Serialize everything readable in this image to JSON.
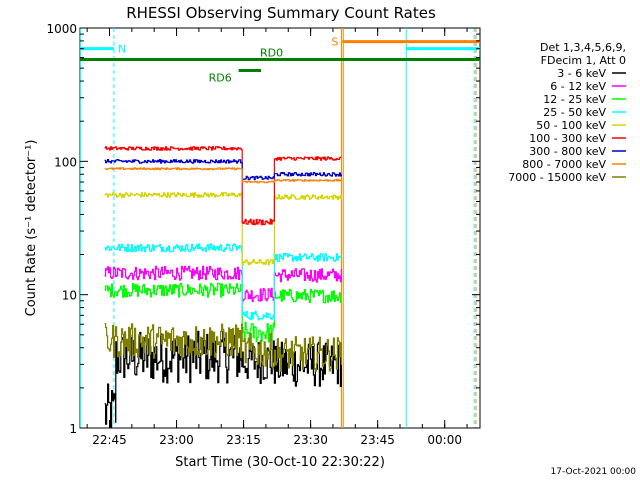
{
  "chart_data": {
    "type": "line",
    "title": "RHESSI Observing Summary Count Rates",
    "xlabel": "Start Time (30-Oct-10 22:30:22)",
    "ylabel": "Count Rate (s⁻¹ detector⁻¹)",
    "x_unit": "minutes from 22:30:22",
    "xlim": [
      8.0,
      97.5
    ],
    "ylim": [
      1,
      1000
    ],
    "yscale": "log",
    "x_ticks": [
      {
        "x": 14.6,
        "label": "22:45"
      },
      {
        "x": 29.6,
        "label": "23:00"
      },
      {
        "x": 44.6,
        "label": "23:15"
      },
      {
        "x": 59.6,
        "label": "23:30"
      },
      {
        "x": 74.6,
        "label": "23:45"
      },
      {
        "x": 89.6,
        "label": "00:00"
      }
    ],
    "y_ticks": [
      {
        "y": 1,
        "label": "1"
      },
      {
        "y": 10,
        "label": "10"
      },
      {
        "y": 100,
        "label": "100"
      },
      {
        "y": 1000,
        "label": "1000"
      }
    ],
    "legend": {
      "placement": "right",
      "header": [
        "Det 1,3,4,5,6,9,",
        "FDecim 1, Att 0"
      ]
    },
    "series": [
      {
        "name": "3 - 6 keV",
        "color": "#000000",
        "segments": [
          {
            "x0": 13.5,
            "x1": 16.0,
            "v": 1.3,
            "noise": 0.5
          },
          {
            "x0": 16.0,
            "x1": 44.3,
            "v": 3.4,
            "noise": 0.45
          },
          {
            "x0": 44.3,
            "x1": 51.5,
            "v": 3.2,
            "noise": 0.4
          },
          {
            "x0": 51.5,
            "x1": 66.5,
            "v": 3.0,
            "noise": 0.4
          }
        ]
      },
      {
        "name": "6 - 12 keV",
        "color": "#ff00ff",
        "segments": [
          {
            "x0": 13.5,
            "x1": 44.3,
            "v": 14.5,
            "noise": 0.12
          },
          {
            "x0": 44.3,
            "x1": 51.5,
            "v": 10.0,
            "noise": 0.12
          },
          {
            "x0": 51.5,
            "x1": 66.5,
            "v": 14.0,
            "noise": 0.12
          }
        ]
      },
      {
        "name": "12 - 25 keV",
        "color": "#00ff00",
        "segments": [
          {
            "x0": 13.5,
            "x1": 44.3,
            "v": 10.8,
            "noise": 0.12
          },
          {
            "x0": 44.3,
            "x1": 51.5,
            "v": 5.2,
            "noise": 0.18
          },
          {
            "x0": 51.5,
            "x1": 66.5,
            "v": 9.8,
            "noise": 0.12
          }
        ]
      },
      {
        "name": "25 - 50 keV",
        "color": "#00ffff",
        "segments": [
          {
            "x0": 13.5,
            "x1": 44.3,
            "v": 22.5,
            "noise": 0.07
          },
          {
            "x0": 44.3,
            "x1": 51.5,
            "v": 7.0,
            "noise": 0.08
          },
          {
            "x0": 51.5,
            "x1": 66.5,
            "v": 19.0,
            "noise": 0.07
          }
        ]
      },
      {
        "name": "50 - 100 keV",
        "color": "#d4d400",
        "segments": [
          {
            "x0": 13.5,
            "x1": 44.3,
            "v": 56.0,
            "noise": 0.04
          },
          {
            "x0": 44.3,
            "x1": 51.5,
            "v": 17.5,
            "noise": 0.05
          },
          {
            "x0": 51.5,
            "x1": 66.5,
            "v": 54.0,
            "noise": 0.04
          }
        ]
      },
      {
        "name": "100 - 300 keV",
        "color": "#ff0000",
        "segments": [
          {
            "x0": 13.5,
            "x1": 44.3,
            "v": 125.0,
            "noise": 0.03
          },
          {
            "x0": 44.3,
            "x1": 51.5,
            "v": 35.0,
            "noise": 0.05
          },
          {
            "x0": 51.5,
            "x1": 66.5,
            "v": 105.0,
            "noise": 0.03
          }
        ]
      },
      {
        "name": "300 - 800 keV",
        "color": "#0000cc",
        "segments": [
          {
            "x0": 13.5,
            "x1": 44.3,
            "v": 100.0,
            "noise": 0.03
          },
          {
            "x0": 44.3,
            "x1": 51.5,
            "v": 75.0,
            "noise": 0.03
          },
          {
            "x0": 51.5,
            "x1": 66.5,
            "v": 80.0,
            "noise": 0.03
          }
        ]
      },
      {
        "name": "800 - 7000 keV",
        "color": "#ff8000",
        "segments": [
          {
            "x0": 13.5,
            "x1": 44.3,
            "v": 88.0,
            "noise": 0.015
          },
          {
            "x0": 44.3,
            "x1": 51.5,
            "v": 70.0,
            "noise": 0.015
          },
          {
            "x0": 51.5,
            "x1": 66.5,
            "v": 72.0,
            "noise": 0.015
          }
        ]
      },
      {
        "name": "7000 - 15000 keV",
        "color": "#808000",
        "segments": [
          {
            "x0": 13.5,
            "x1": 44.3,
            "v": 4.5,
            "noise": 0.3
          },
          {
            "x0": 44.3,
            "x1": 51.5,
            "v": 3.8,
            "noise": 0.3
          },
          {
            "x0": 51.5,
            "x1": 66.5,
            "v": 3.6,
            "noise": 0.3
          }
        ]
      }
    ],
    "flags": [
      {
        "label": "N",
        "color": "#00ffff",
        "y": 700,
        "segments": [
          [
            8.0,
            15.6
          ],
          [
            81.0,
            97.5
          ]
        ]
      },
      {
        "label": "S",
        "color": "#ff8000",
        "y": 790,
        "segments": [
          [
            66.7,
            97.5
          ]
        ]
      },
      {
        "label": "RD0",
        "color": "#008000",
        "y": 580,
        "segments": [
          [
            8.0,
            97.5
          ]
        ]
      },
      {
        "label": "RD6",
        "color": "#008000",
        "y": 480,
        "segments": [
          [
            43.5,
            48.5
          ]
        ]
      }
    ],
    "vertical_markers": [
      {
        "x": 8.1,
        "color": "#00ffff",
        "style": "solid"
      },
      {
        "x": 15.6,
        "color": "#00ffff",
        "style": "dashed"
      },
      {
        "x": 66.5,
        "color": "#ff8000",
        "style": "solid"
      },
      {
        "x": 66.9,
        "color": "#ff8000",
        "style": "solid"
      },
      {
        "x": 81.0,
        "color": "#00ffff",
        "style": "solid"
      },
      {
        "x": 96.2,
        "color": "#00ffff",
        "style": "dashed"
      },
      {
        "x": 96.6,
        "color": "#ff8000",
        "style": "dashed"
      }
    ]
  },
  "footer": {
    "timestamp": "17-Oct-2021 00:00"
  }
}
